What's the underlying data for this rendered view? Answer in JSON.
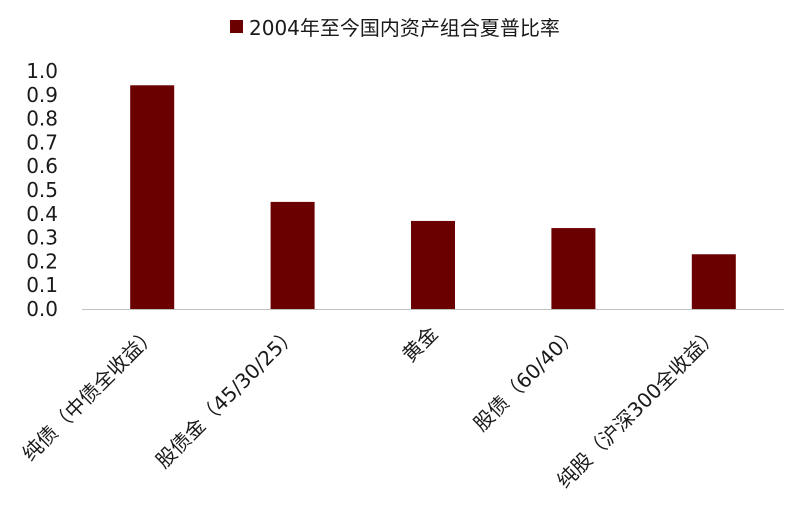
{
  "chart_data": {
    "type": "bar",
    "title": "",
    "xlabel": "",
    "ylabel": "",
    "categories": [
      "纯债（中债全收益）",
      "股债金（45/30/25）",
      "黄金",
      "股债（60/40）",
      "纯股（沪深300全收益）"
    ],
    "series": [
      {
        "name": "2004年至今国内资产组合夏普比率",
        "values": [
          0.94,
          0.45,
          0.37,
          0.34,
          0.23
        ]
      }
    ],
    "ylim": [
      0,
      1.0
    ],
    "yticks": [
      "0.0",
      "0.1",
      "0.2",
      "0.3",
      "0.4",
      "0.5",
      "0.6",
      "0.7",
      "0.8",
      "0.9",
      "1.0"
    ],
    "grid": false,
    "legend_position": "top-center"
  },
  "colors": {
    "bar": "#6b0000",
    "axis": "#bfbfbf",
    "text": "#1a1a1a"
  }
}
